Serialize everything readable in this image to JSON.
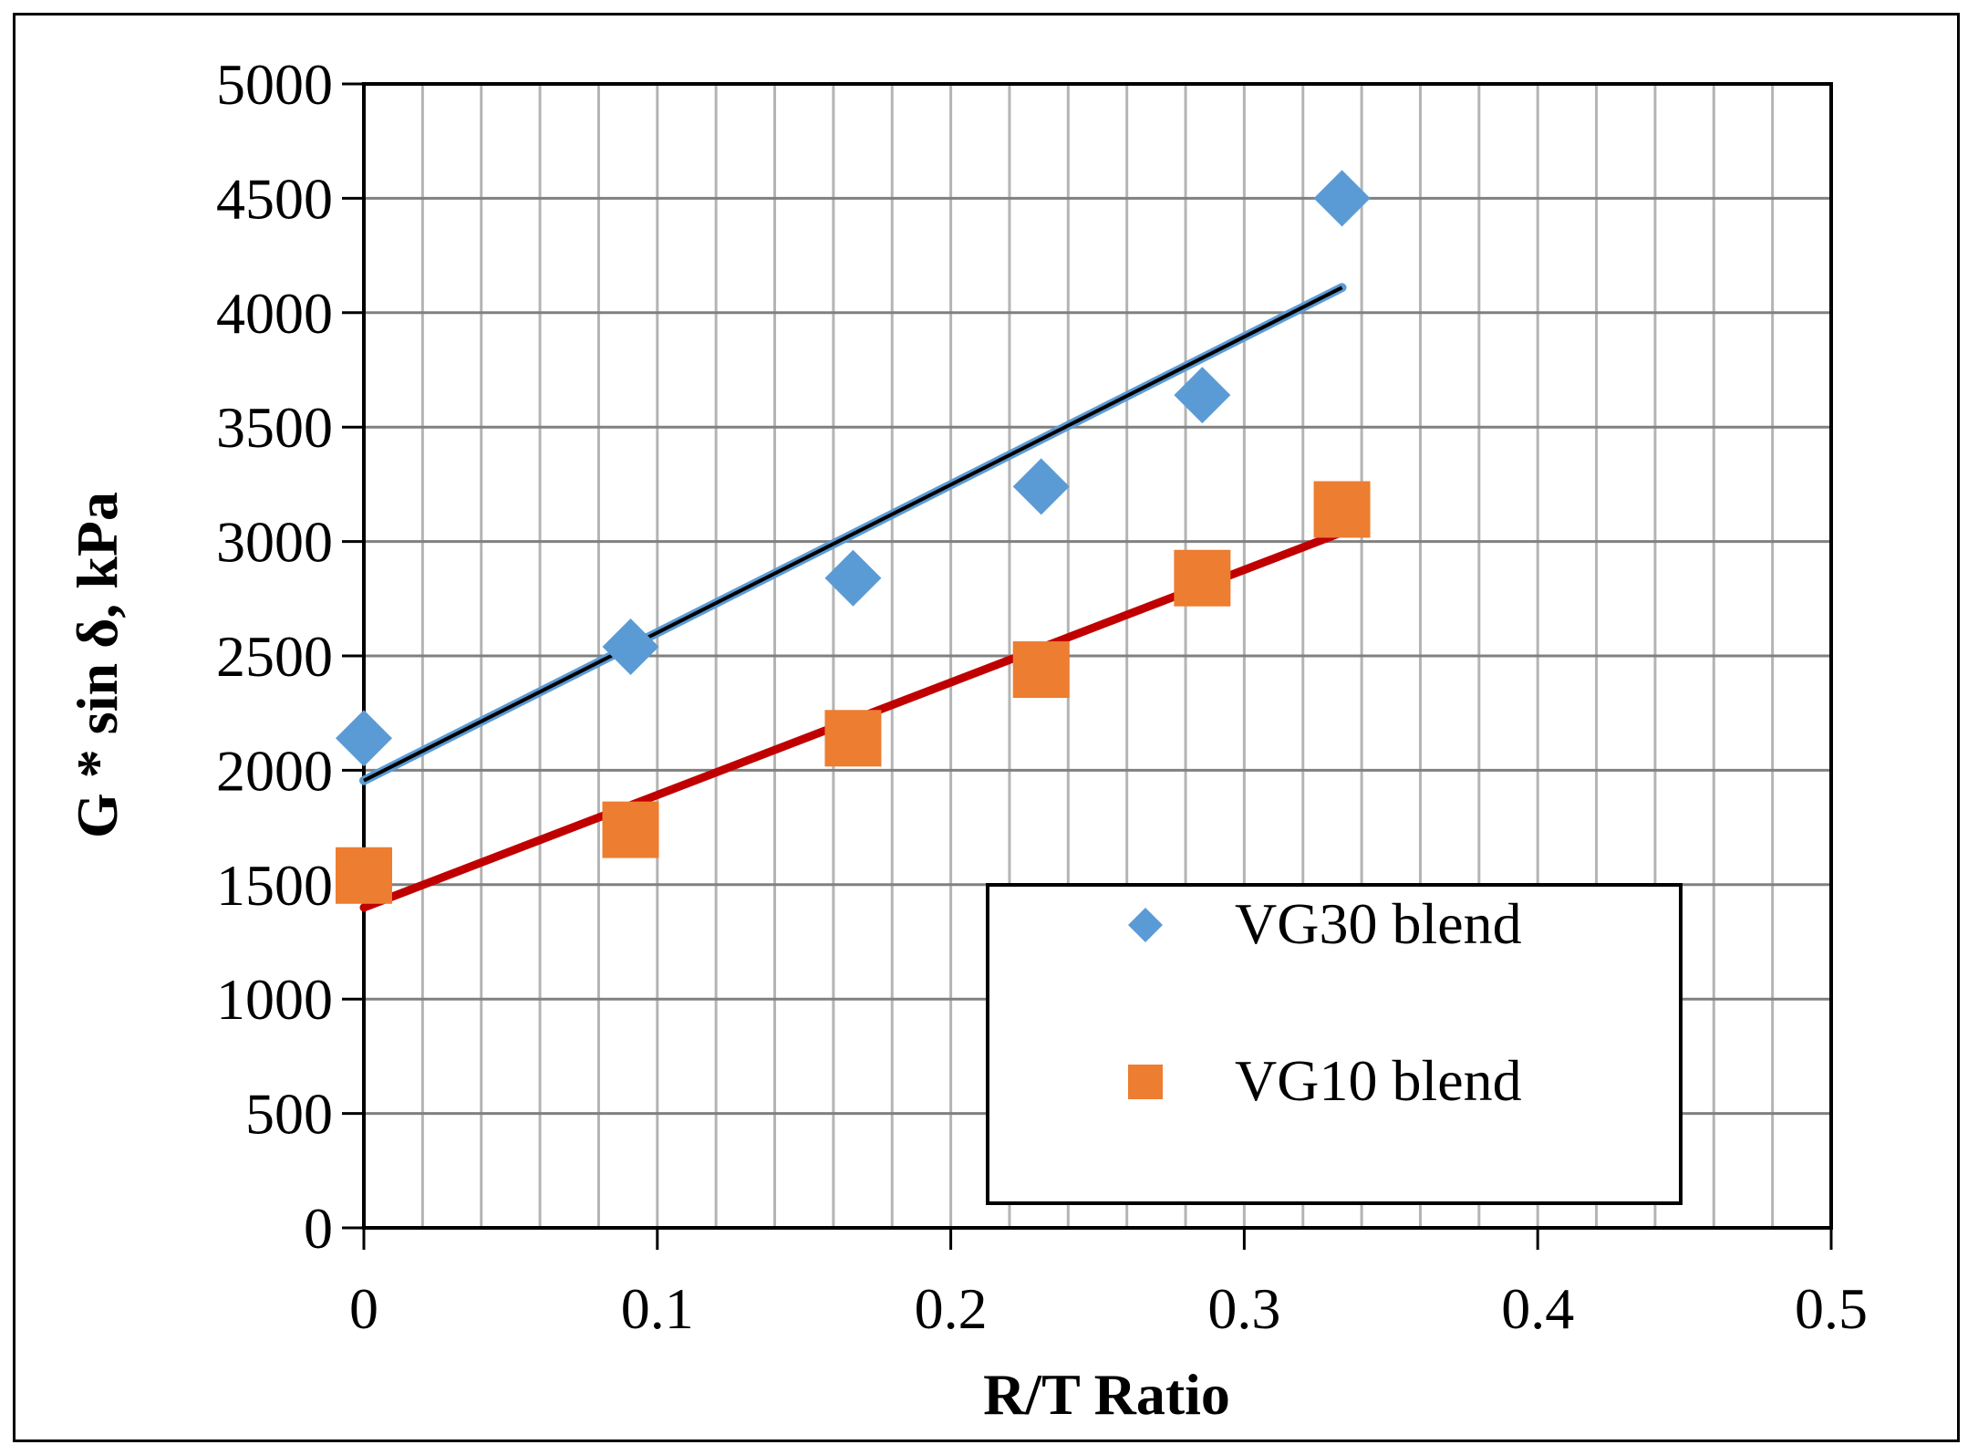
{
  "chart_data": {
    "type": "scatter",
    "title": "",
    "xlabel": "R/T Ratio",
    "ylabel": "G * sin δ, kPa",
    "xlim": [
      0,
      0.5
    ],
    "ylim": [
      0,
      5000
    ],
    "x_ticks": [
      0,
      0.1,
      0.2,
      0.3,
      0.4,
      0.5
    ],
    "x_tick_labels": [
      "0",
      "0.1",
      "0.2",
      "0.3",
      "0.4",
      "0.5"
    ],
    "x_minor_step": 0.02,
    "y_ticks": [
      0,
      500,
      1000,
      1500,
      2000,
      2500,
      3000,
      3500,
      4000,
      4500,
      5000
    ],
    "y_tick_labels": [
      "0",
      "500",
      "1000",
      "1500",
      "2000",
      "2500",
      "3000",
      "3500",
      "4000",
      "4500",
      "5000"
    ],
    "grid": true,
    "legend_position": "bottom-right",
    "series": [
      {
        "name": "VG30 blend",
        "marker": "diamond",
        "color": "#5B9BD5",
        "x": [
          0,
          0.0909,
          0.1667,
          0.2308,
          0.2857,
          0.3333
        ],
        "y": [
          2140,
          2540,
          2840,
          3240,
          3640,
          4500
        ],
        "trendline": {
          "x": [
            0,
            0.3333
          ],
          "y": [
            1955,
            4110
          ],
          "color": "#000000",
          "edge_color": "#5B9BD5"
        }
      },
      {
        "name": "VG10 blend",
        "marker": "square",
        "color": "#ED7D31",
        "x": [
          0,
          0.0909,
          0.1667,
          0.2308,
          0.2857,
          0.3333
        ],
        "y": [
          1540,
          1740,
          2140,
          2440,
          2840,
          3140
        ],
        "trendline": {
          "x": [
            0,
            0.3333
          ],
          "y": [
            1400,
            3040
          ],
          "color": "#C00000"
        }
      }
    ]
  }
}
